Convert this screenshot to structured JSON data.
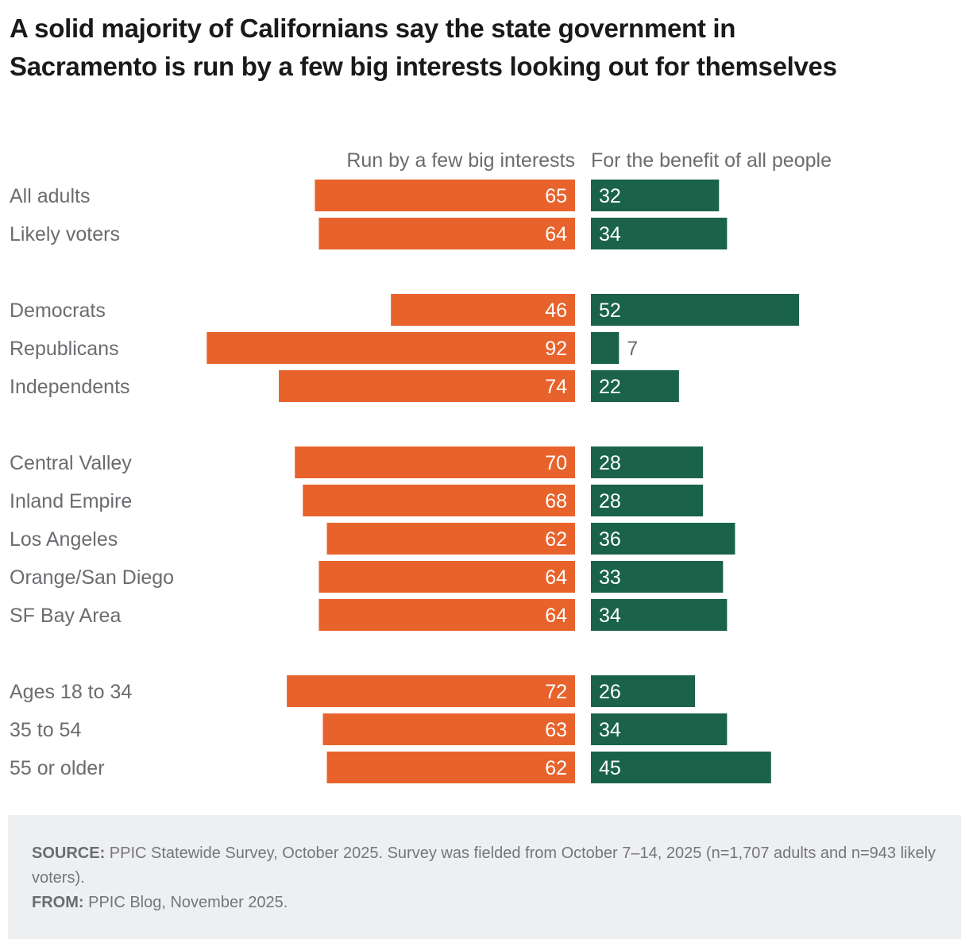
{
  "title": "A solid majority of Californians say the state government in Sacramento is run by a few big interests looking out for themselves",
  "colors": {
    "run_by_few": "#e8632c",
    "benefit_all": "#1a634a",
    "label_text": "#6b6c70",
    "inside_label": "#ffffff",
    "footer_bg": "#eeeff1"
  },
  "chart_data": {
    "type": "bar",
    "orientation": "horizontal-diverging",
    "title": "A solid majority of Californians say the state government in Sacramento is run by a few big interests looking out for themselves",
    "xlabel": "",
    "ylabel": "",
    "unit": "%",
    "grid": false,
    "legend": "column headers at top",
    "categories": [
      "All adults",
      "Likely voters",
      "Democrats",
      "Republicans",
      "Independents",
      "Central Valley",
      "Inland Empire",
      "Los Angeles",
      "Orange/San Diego",
      "SF Bay Area",
      "Ages 18 to 34",
      "35 to 54",
      "55 or older"
    ],
    "groups": [
      [
        "All adults",
        "Likely voters"
      ],
      [
        "Democrats",
        "Republicans",
        "Independents"
      ],
      [
        "Central Valley",
        "Inland Empire",
        "Los Angeles",
        "Orange/San Diego",
        "SF Bay Area"
      ],
      [
        "Ages 18 to 34",
        "35 to 54",
        "55 or older"
      ]
    ],
    "series": [
      {
        "name": "Run by a few big interests",
        "values": [
          65,
          64,
          46,
          92,
          74,
          70,
          68,
          62,
          64,
          64,
          72,
          63,
          62
        ]
      },
      {
        "name": "For the benefit of all people",
        "values": [
          32,
          34,
          52,
          7,
          22,
          28,
          28,
          36,
          33,
          34,
          26,
          34,
          45
        ]
      }
    ],
    "xlim": [
      0,
      100
    ]
  },
  "footer": {
    "source_label": "SOURCE:",
    "source_text": " PPIC Statewide Survey, October 2025. Survey was fielded from October 7–14, 2025 (n=1,707 adults and n=943 likely voters).",
    "from_label": "FROM:",
    "from_text": " PPIC Blog, November 2025."
  }
}
